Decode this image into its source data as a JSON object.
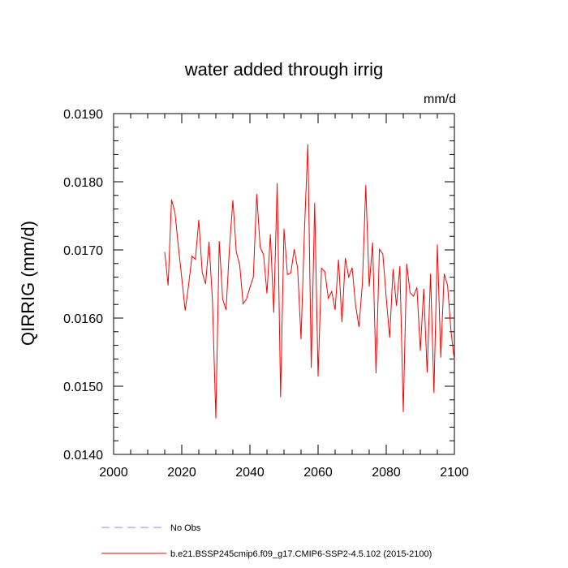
{
  "chart_data": {
    "type": "line",
    "title": "water added through irrig",
    "units": "mm/d",
    "ylabel": "QIRRIG  (mm/d)",
    "xlabel": "",
    "xlim": [
      2000,
      2100
    ],
    "ylim": [
      0.014,
      0.019
    ],
    "x_ticks": [
      2000,
      2020,
      2040,
      2060,
      2080,
      2100
    ],
    "x_tick_labels": [
      "2000",
      "2020",
      "2040",
      "2060",
      "2080",
      "2100"
    ],
    "y_ticks": [
      0.014,
      0.015,
      0.016,
      0.017,
      0.018,
      0.019
    ],
    "y_tick_labels": [
      "0.0140",
      "0.0150",
      "0.0160",
      "0.0170",
      "0.0180",
      "0.0190"
    ],
    "grid": false,
    "legend_position": "bottom",
    "series": [
      {
        "name": "No Obs",
        "color": "#8888ff",
        "dash": "dashed",
        "x": [],
        "y": []
      },
      {
        "name": "b.e21.BSSP245cmip6.f09_g17.CMIP6-SSP2-4.5.102 (2015-2100)",
        "color": "#ff0000",
        "dash": "solid",
        "x": [
          2015,
          2016,
          2017,
          2018,
          2019,
          2020,
          2021,
          2022,
          2023,
          2024,
          2025,
          2026,
          2027,
          2028,
          2029,
          2030,
          2031,
          2032,
          2033,
          2034,
          2035,
          2036,
          2037,
          2038,
          2039,
          2040,
          2041,
          2042,
          2043,
          2044,
          2045,
          2046,
          2047,
          2048,
          2049,
          2050,
          2051,
          2052,
          2053,
          2054,
          2055,
          2056,
          2057,
          2058,
          2059,
          2060,
          2061,
          2062,
          2063,
          2064,
          2065,
          2066,
          2067,
          2068,
          2069,
          2070,
          2071,
          2072,
          2073,
          2074,
          2075,
          2076,
          2077,
          2078,
          2079,
          2080,
          2081,
          2082,
          2083,
          2084,
          2085,
          2086,
          2087,
          2088,
          2089,
          2090,
          2091,
          2092,
          2093,
          2094,
          2095,
          2096,
          2097,
          2098,
          2099,
          2100
        ],
        "y": [
          0.01697,
          0.01648,
          0.01774,
          0.01755,
          0.01705,
          0.01659,
          0.01611,
          0.01648,
          0.01691,
          0.01686,
          0.01744,
          0.01667,
          0.0165,
          0.01712,
          0.01626,
          0.01453,
          0.01713,
          0.01628,
          0.01612,
          0.01703,
          0.01773,
          0.01697,
          0.01678,
          0.01621,
          0.01628,
          0.01645,
          0.0166,
          0.01782,
          0.01704,
          0.01693,
          0.01636,
          0.01723,
          0.01608,
          0.01798,
          0.01484,
          0.01731,
          0.01664,
          0.01666,
          0.01701,
          0.01673,
          0.01569,
          0.01728,
          0.01855,
          0.01527,
          0.01769,
          0.01514,
          0.01673,
          0.01668,
          0.01629,
          0.01639,
          0.01612,
          0.01686,
          0.01594,
          0.01688,
          0.0166,
          0.01674,
          0.01619,
          0.01587,
          0.01651,
          0.01795,
          0.01646,
          0.01711,
          0.01519,
          0.01701,
          0.01694,
          0.0163,
          0.01571,
          0.01672,
          0.01618,
          0.01676,
          0.01462,
          0.0168,
          0.01637,
          0.01632,
          0.01645,
          0.01552,
          0.01643,
          0.0152,
          0.01665,
          0.0149,
          0.01708,
          0.01542,
          0.01665,
          0.01648,
          0.01581,
          0.01538
        ]
      }
    ]
  }
}
